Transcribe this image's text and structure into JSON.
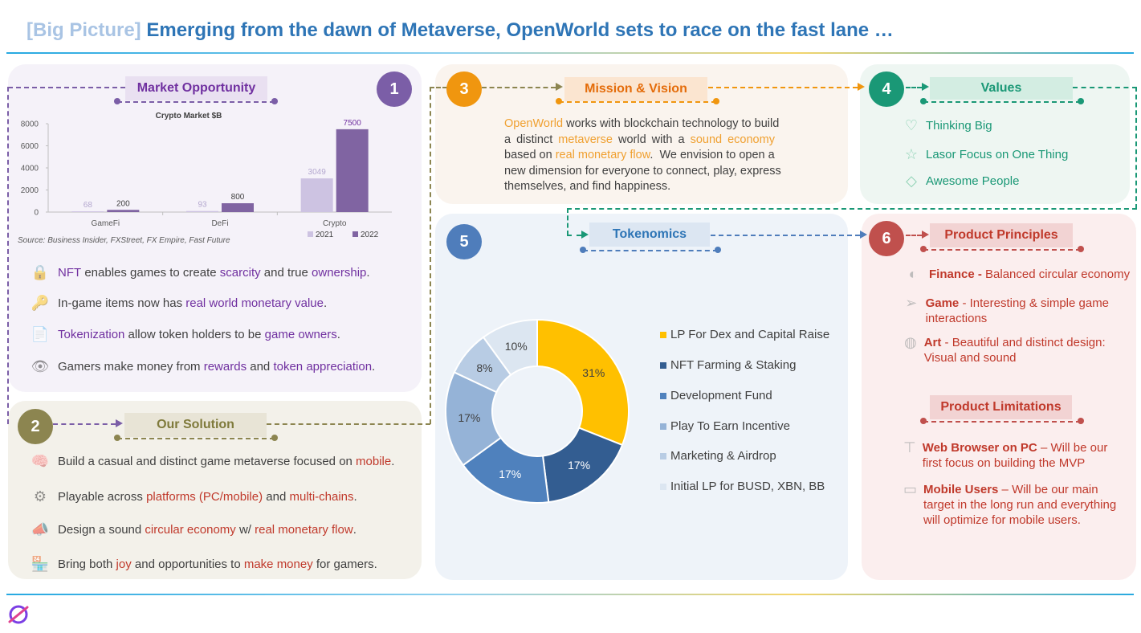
{
  "header": {
    "bracket": "[Big Picture]",
    "title": "Emerging from the dawn of Metaverse, OpenWorld sets to race on the fast lane …"
  },
  "sections": {
    "s1": {
      "num": "1",
      "title": "Market Opportunity"
    },
    "s2": {
      "num": "2",
      "title": "Our Solution"
    },
    "s3": {
      "num": "3",
      "title": "Mission & Vision"
    },
    "s4": {
      "num": "4",
      "title": "Values"
    },
    "s5": {
      "num": "5",
      "title": "Tokenomics"
    },
    "s6": {
      "num": "6",
      "title": "Product Principles"
    },
    "s6b": {
      "title": "Product Limitations"
    }
  },
  "market_chart": {
    "title": "Crypto Market $B",
    "source": "Source: Business Insider, FXStreet, FX Empire, Fast Future",
    "y_ticks": [
      "8000",
      "6000",
      "4000",
      "2000",
      "0"
    ],
    "categories": [
      "GameFi",
      "DeFi",
      "Crypto"
    ],
    "labels_2021": [
      "68",
      "93",
      "3049"
    ],
    "labels_2022": [
      "200",
      "800",
      "7500"
    ],
    "legend": [
      "2021",
      "2022"
    ]
  },
  "chart_data": [
    {
      "type": "bar",
      "title": "Crypto Market $B",
      "categories": [
        "GameFi",
        "DeFi",
        "Crypto"
      ],
      "series": [
        {
          "name": "2021",
          "values": [
            68,
            93,
            3049
          ]
        },
        {
          "name": "2022",
          "values": [
            200,
            800,
            7500
          ]
        }
      ],
      "ylim": [
        0,
        8000
      ],
      "legend": "bottom-right",
      "colors": {
        "2021": "#cdc3e2",
        "2022": "#8064a2"
      }
    },
    {
      "type": "pie",
      "labels": [
        "LP For Dex and Capital Raise",
        "NFT Farming & Staking",
        "Development Fund",
        "Play To Earn Incentive",
        "Marketing & Airdrop",
        "Initial LP for BUSD, XBN, BB"
      ],
      "values": [
        31,
        17,
        17,
        17,
        8,
        10
      ],
      "value_labels": [
        "31%",
        "17%",
        "17%",
        "17%",
        "8%",
        "10%"
      ],
      "colors": [
        "#ffc000",
        "#335d91",
        "#4f81bd",
        "#95b3d7",
        "#b8cce4",
        "#dce6f1"
      ],
      "legend": "right"
    }
  ],
  "market_bullets": {
    "b1": {
      "a": "NFT",
      "b": " enables games to create ",
      "c": "scarcity",
      "d": " and true ",
      "e": "ownership",
      "f": "."
    },
    "b2": {
      "a": "In-game items now has ",
      "b": "real world monetary value",
      "c": "."
    },
    "b3": {
      "a": "Tokenization",
      "b": " allow token holders to be ",
      "c": "game owners",
      "d": "."
    },
    "b4": {
      "a": "Gamers make money from ",
      "b": "rewards",
      "c": " and ",
      "d": "token appreciation",
      "e": "."
    }
  },
  "solution_bullets": {
    "b1": {
      "a": "Build a casual and distinct game metaverse focused on ",
      "b": "mobile",
      "c": "."
    },
    "b2": {
      "a": "Playable across ",
      "b": "platforms (PC/mobile)",
      "c": " and ",
      "d": "multi-chains",
      "e": "."
    },
    "b3": {
      "a": "Design a sound ",
      "b": "circular economy",
      "c": " w/ ",
      "d": "real monetary flow",
      "e": "."
    },
    "b4": {
      "a": "Bring both ",
      "b": "joy",
      "c": " and opportunities to ",
      "d": "make money",
      "e": " for gamers."
    }
  },
  "mission": {
    "l1a": "OpenWorld",
    "l1b": " works with blockchain technology to build",
    "l2a": "a distinct ",
    "l2b": "metaverse",
    "l2c": " world with a ",
    "l2d": "sound economy",
    "l3a": "based on ",
    "l3b": "real monetary flow",
    "l3c": ".  We envision to open a",
    "l4": "new dimension for everyone to connect, play, express",
    "l5": "themselves, and find happiness."
  },
  "values": [
    "Thinking Big",
    "Lasor Focus on One Thing",
    "Awesome People"
  ],
  "principles": [
    {
      "bold": "Finance -",
      "text": " Balanced circular economy"
    },
    {
      "bold": "Game",
      "text": " - Interesting & simple game interactions"
    },
    {
      "bold": "Art",
      "text": " - Beautiful and distinct design: Visual and sound"
    }
  ],
  "limitations": [
    {
      "bold": "Web Browser on PC",
      "text": " – Will be our first focus on building the MVP"
    },
    {
      "bold": "Mobile Users",
      "text": " – Will be our main target in the long run and everything will optimize for mobile users."
    }
  ],
  "colors": {
    "purple": "#7b5ea7",
    "olive": "#8c8550",
    "orange": "#f0960f",
    "teal": "#1a9876",
    "blue": "#4f7dbb",
    "red": "#c0504d"
  }
}
